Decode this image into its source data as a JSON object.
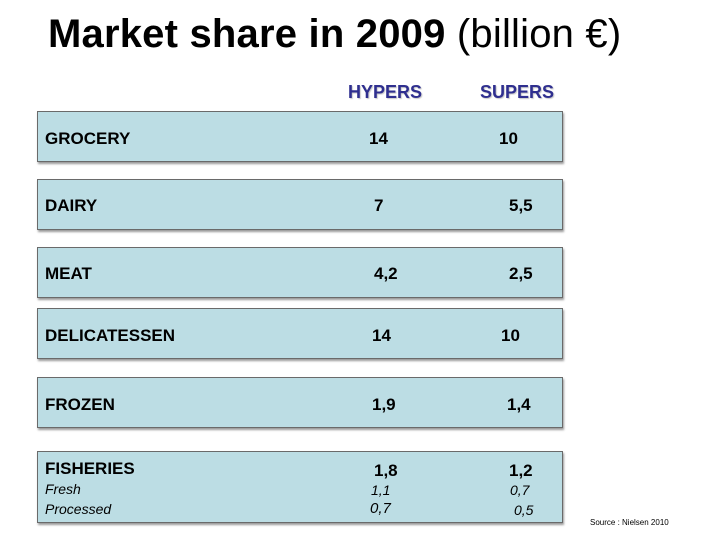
{
  "chart_data": {
    "type": "table",
    "title_bold": "Market share in 2009",
    "title_unit": "(billion €)",
    "columns": [
      "HYPERS",
      "SUPERS"
    ],
    "rows": [
      {
        "label": "GROCERY",
        "values": [
          "14",
          "10"
        ]
      },
      {
        "label": "DAIRY",
        "values": [
          "7",
          "5,5"
        ]
      },
      {
        "label": "MEAT",
        "values": [
          "4,2",
          "2,5"
        ]
      },
      {
        "label": "DELICATESSEN",
        "values": [
          "14",
          "10"
        ]
      },
      {
        "label": "FROZEN",
        "values": [
          "1,9",
          "1,4"
        ]
      },
      {
        "label": "FISHERIES",
        "values": [
          "1,8",
          "1,2"
        ],
        "subrows": [
          {
            "label": "Fresh",
            "values": [
              "1,1",
              "0,7"
            ]
          },
          {
            "label": "Processed",
            "values": [
              "0,7",
              "0,5"
            ]
          }
        ]
      }
    ],
    "source": "Source : Nielsen 2010"
  }
}
